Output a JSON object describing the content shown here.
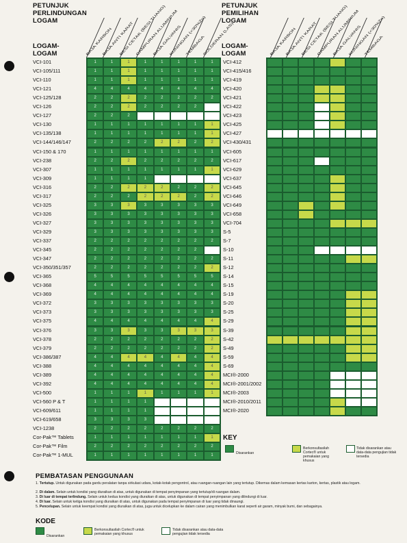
{
  "left_table": {
    "title": [
      "PETUNJUK",
      "PERLINDUNGAN",
      "LOGAM"
    ],
    "metals_header": [
      "LOGAM-",
      "LOGAM"
    ],
    "columns": [
      "BAJA KARBON",
      "BAJA ANTI KARAT",
      "BESI CETAK (BESI TUANG)",
      "CAMPURAN ALUMINIUM",
      "BAJA GALVANIS",
      "KUNINGAN (<30%Zn)",
      "TEMBAGA",
      "SOLDERAN (LAS)"
    ],
    "rows": [
      {
        "label": "VCI-101",
        "cells": [
          "g1",
          "g1",
          "y1",
          "g1",
          "g1",
          "g1",
          "g1",
          "g1"
        ]
      },
      {
        "label": "VCI-105/111",
        "cells": [
          "g1",
          "g1",
          "y1",
          "g1",
          "g1",
          "g1",
          "g1",
          "g1"
        ]
      },
      {
        "label": "VCI-110",
        "cells": [
          "g1",
          "g1",
          "y1",
          "g1",
          "g1",
          "g1",
          "g1",
          "g1"
        ]
      },
      {
        "label": "VCI-121",
        "cells": [
          "g4",
          "g4",
          "g4",
          "g4",
          "g4",
          "g4",
          "g4",
          "g4"
        ]
      },
      {
        "label": "VCI-125/128",
        "cells": [
          "g2",
          "g2",
          "y2",
          "g2",
          "g2",
          "g2",
          "g2",
          "g2"
        ]
      },
      {
        "label": "VCI-126",
        "cells": [
          "g2",
          "g2",
          "y2",
          "g2",
          "g2",
          "g2",
          "g2",
          "w"
        ]
      },
      {
        "label": "VCI-127",
        "cells": [
          "g2",
          "g2",
          "g2",
          "w",
          "w",
          "w",
          "w",
          "w"
        ]
      },
      {
        "label": "VCI-130",
        "cells": [
          "g1",
          "g1",
          "g1",
          "g1",
          "g1",
          "g1",
          "g1",
          "y1"
        ]
      },
      {
        "label": "VCI-135/138",
        "cells": [
          "g1",
          "g1",
          "g1",
          "g1",
          "g1",
          "g1",
          "g1",
          "y1"
        ]
      },
      {
        "label": "VCI-144/146/147",
        "cells": [
          "g2",
          "g2",
          "g2",
          "g2",
          "y2",
          "y2",
          "g2",
          "y2"
        ]
      },
      {
        "label": "VCI-150 & 170",
        "cells": [
          "g1",
          "g1",
          "g1",
          "g1",
          "g1",
          "g1",
          "g1",
          "g1"
        ]
      },
      {
        "label": "VCI-238",
        "cells": [
          "g2",
          "g2",
          "y2",
          "g2",
          "g2",
          "g2",
          "g2",
          "g2"
        ]
      },
      {
        "label": "VCI-307",
        "cells": [
          "g1",
          "g1",
          "g1",
          "g1",
          "g1",
          "g1",
          "g1",
          "y1"
        ]
      },
      {
        "label": "VCI-309",
        "cells": [
          "g1",
          "g1",
          "g1",
          "g1",
          "w",
          "w",
          "w",
          "w"
        ]
      },
      {
        "label": "VCI-316",
        "cells": [
          "g2",
          "g2",
          "y2",
          "y2",
          "y2",
          "g2",
          "g2",
          "y2"
        ]
      },
      {
        "label": "VCI-317",
        "cells": [
          "g2",
          "g2",
          "g2",
          "y2",
          "y2",
          "y2",
          "g2",
          "y2"
        ]
      },
      {
        "label": "VCI-325",
        "cells": [
          "g3",
          "g3",
          "y3",
          "g3",
          "g3",
          "g3",
          "g3",
          "g3"
        ]
      },
      {
        "label": "VCI-326",
        "cells": [
          "g3",
          "g3",
          "g3",
          "g3",
          "g3",
          "g3",
          "g3",
          "g3"
        ]
      },
      {
        "label": "VCI-327",
        "cells": [
          "g3",
          "g3",
          "g3",
          "g3",
          "g3",
          "g3",
          "g3",
          "g3"
        ]
      },
      {
        "label": "VCI-329",
        "cells": [
          "g3",
          "g3",
          "g3",
          "g3",
          "g3",
          "g3",
          "g3",
          "g3"
        ]
      },
      {
        "label": "VCI-337",
        "cells": [
          "g2",
          "g2",
          "g2",
          "g2",
          "g2",
          "g2",
          "g2",
          "g2"
        ]
      },
      {
        "label": "VCI-345",
        "cells": [
          "g2",
          "g2",
          "g2",
          "g2",
          "g2",
          "g2",
          "g2",
          "w"
        ]
      },
      {
        "label": "VCI-347",
        "cells": [
          "g2",
          "g2",
          "g2",
          "g2",
          "g2",
          "g2",
          "g2",
          "g2"
        ]
      },
      {
        "label": "VCI-350/351/357",
        "cells": [
          "g2",
          "g2",
          "g2",
          "g2",
          "g2",
          "g2",
          "g2",
          "y2"
        ]
      },
      {
        "label": "VCI-365",
        "cells": [
          "g5",
          "g5",
          "g5",
          "g5",
          "g5",
          "g5",
          "g5",
          "g5"
        ]
      },
      {
        "label": "VCI-368",
        "cells": [
          "g4",
          "g4",
          "g4",
          "g4",
          "g4",
          "g4",
          "g4",
          "g4"
        ]
      },
      {
        "label": "VCI-369",
        "cells": [
          "g4",
          "g4",
          "g4",
          "g4",
          "g4",
          "g4",
          "g4",
          "g4"
        ]
      },
      {
        "label": "VCI-372",
        "cells": [
          "g3",
          "g3",
          "g3",
          "g3",
          "g3",
          "g3",
          "g3",
          "g3"
        ]
      },
      {
        "label": "VCI-373",
        "cells": [
          "g3",
          "g3",
          "g3",
          "g3",
          "g3",
          "g3",
          "g3",
          "g3"
        ]
      },
      {
        "label": "VCI-375",
        "cells": [
          "g4",
          "g4",
          "g4",
          "g4",
          "g4",
          "g4",
          "g4",
          "y4"
        ]
      },
      {
        "label": "VCI-376",
        "cells": [
          "g3",
          "g3",
          "y3",
          "g3",
          "g3",
          "y3",
          "y3",
          "y3"
        ]
      },
      {
        "label": "VCI-378",
        "cells": [
          "g2",
          "g2",
          "g2",
          "g2",
          "g2",
          "g2",
          "g2",
          "y2"
        ]
      },
      {
        "label": "VCI-379",
        "cells": [
          "g2",
          "g2",
          "g2",
          "g2",
          "g2",
          "g2",
          "g2",
          "y2"
        ]
      },
      {
        "label": "VCI-386/387",
        "cells": [
          "g4",
          "g4",
          "y4",
          "y4",
          "g4",
          "y4",
          "g4",
          "y4"
        ]
      },
      {
        "label": "VCI-388",
        "cells": [
          "g4",
          "g4",
          "g4",
          "g4",
          "g4",
          "g4",
          "g4",
          "y4"
        ]
      },
      {
        "label": "VCI-389",
        "cells": [
          "g4",
          "g4",
          "g4",
          "g4",
          "g4",
          "g4",
          "g4",
          "y4"
        ]
      },
      {
        "label": "VCI-392",
        "cells": [
          "g4",
          "g4",
          "g4",
          "g4",
          "g4",
          "g4",
          "g4",
          "y4"
        ]
      },
      {
        "label": "VCI-500",
        "cells": [
          "g1",
          "g1",
          "g1",
          "y1",
          "g1",
          "g1",
          "g1",
          "y1"
        ]
      },
      {
        "label": "VCI-560 P & T",
        "cells": [
          "g1",
          "g1",
          "g1",
          "g1",
          "w",
          "w",
          "w",
          "w"
        ]
      },
      {
        "label": "VCI-609/611",
        "cells": [
          "g1",
          "g1",
          "g1",
          "g1",
          "w",
          "w",
          "w",
          "w"
        ]
      },
      {
        "label": "VCI-619/658",
        "cells": [
          "g3",
          "g3",
          "g3",
          "g3",
          "w",
          "w",
          "w",
          "w"
        ]
      },
      {
        "label": "VCI-1238",
        "cells": [
          "g2",
          "g2",
          "g2",
          "g2",
          "g2",
          "g2",
          "g2",
          "g2"
        ]
      },
      {
        "label": "Cor-Pak™ Tablets",
        "cells": [
          "g1",
          "g1",
          "g1",
          "g1",
          "g1",
          "g1",
          "g1",
          "y1"
        ]
      },
      {
        "label": "Cor-Pak™ Film",
        "cells": [
          "g2",
          "g2",
          "g2",
          "g2",
          "g2",
          "g2",
          "g2",
          "g2"
        ]
      },
      {
        "label": "Cor-Pak™ 1-MUL",
        "cells": [
          "g1",
          "g1",
          "g1",
          "g1",
          "g1",
          "g1",
          "g1",
          "g1"
        ]
      }
    ]
  },
  "right_table": {
    "title": [
      "PETUNJUK",
      "PEMILIHAN",
      "LOGAM"
    ],
    "metals_header": [
      "LOGAM-",
      "LOGAM"
    ],
    "columns": [
      "BAJA KARBON",
      "BAJA ANTI KARAT",
      "BESI CETAK (BESI TUANG)",
      "CAMPURAN ALUMINIUM",
      "BAJA GALVANIS",
      "KUNINGAN (<30%Zn)",
      "TEMBAGA"
    ],
    "rows": [
      {
        "label": "VCI-412",
        "cells": [
          "g",
          "g",
          "g",
          "g",
          "y",
          "g",
          "g"
        ]
      },
      {
        "label": "VCI-415/416",
        "cells": [
          "g",
          "g",
          "g",
          "g",
          "g",
          "g",
          "g"
        ]
      },
      {
        "label": "VCI-419",
        "cells": [
          "g",
          "g",
          "g",
          "g",
          "g",
          "g",
          "g"
        ]
      },
      {
        "label": "VCI-420",
        "cells": [
          "g",
          "g",
          "g",
          "y",
          "y",
          "g",
          "g"
        ]
      },
      {
        "label": "VCI-421",
        "cells": [
          "g",
          "g",
          "g",
          "y",
          "y",
          "g",
          "g"
        ]
      },
      {
        "label": "VCI-422",
        "cells": [
          "g",
          "g",
          "g",
          "w",
          "y",
          "g",
          "g"
        ]
      },
      {
        "label": "VCI-423",
        "cells": [
          "g",
          "g",
          "g",
          "w",
          "y",
          "g",
          "g"
        ]
      },
      {
        "label": "VCI-425",
        "cells": [
          "g",
          "g",
          "g",
          "w",
          "y",
          "g",
          "g"
        ]
      },
      {
        "label": "VCI-427",
        "cells": [
          "w",
          "w",
          "w",
          "w",
          "w",
          "w",
          "w"
        ]
      },
      {
        "label": "VCI-430/431",
        "cells": [
          "g",
          "g",
          "g",
          "g",
          "g",
          "g",
          "g"
        ]
      },
      {
        "label": "VCI-605",
        "cells": [
          "g",
          "g",
          "g",
          "g",
          "g",
          "g",
          "g"
        ]
      },
      {
        "label": "VCI-617",
        "cells": [
          "g",
          "g",
          "g",
          "w",
          "g",
          "g",
          "g"
        ]
      },
      {
        "label": "VCI-629",
        "cells": [
          "g",
          "g",
          "g",
          "g",
          "g",
          "g",
          "g"
        ]
      },
      {
        "label": "VCI-637",
        "cells": [
          "g",
          "g",
          "g",
          "g",
          "y",
          "g",
          "g"
        ]
      },
      {
        "label": "VCI-645",
        "cells": [
          "g",
          "g",
          "g",
          "g",
          "y",
          "g",
          "g"
        ]
      },
      {
        "label": "VCI-646",
        "cells": [
          "g",
          "g",
          "g",
          "g",
          "y",
          "g",
          "g"
        ]
      },
      {
        "label": "VCI-649",
        "cells": [
          "g",
          "g",
          "y",
          "g",
          "y",
          "g",
          "g"
        ]
      },
      {
        "label": "VCI-658",
        "cells": [
          "g",
          "g",
          "y",
          "g",
          "g",
          "g",
          "g"
        ]
      },
      {
        "label": "VCI-704",
        "cells": [
          "g",
          "g",
          "g",
          "g",
          "y",
          "y",
          "y"
        ]
      },
      {
        "label": "S-5",
        "cells": [
          "g",
          "g",
          "g",
          "g",
          "g",
          "g",
          "g"
        ]
      },
      {
        "label": "S-7",
        "cells": [
          "g",
          "g",
          "g",
          "g",
          "g",
          "g",
          "g"
        ]
      },
      {
        "label": "S-10",
        "cells": [
          "g",
          "g",
          "g",
          "w",
          "w",
          "w",
          "w"
        ]
      },
      {
        "label": "S-11",
        "cells": [
          "g",
          "g",
          "g",
          "g",
          "g",
          "y",
          "y"
        ]
      },
      {
        "label": "S-12",
        "cells": [
          "g",
          "g",
          "g",
          "g",
          "g",
          "g",
          "g"
        ]
      },
      {
        "label": "S-14",
        "cells": [
          "g",
          "g",
          "g",
          "g",
          "g",
          "g",
          "g"
        ]
      },
      {
        "label": "S-15",
        "cells": [
          "g",
          "g",
          "g",
          "g",
          "g",
          "g",
          "g"
        ]
      },
      {
        "label": "S-19",
        "cells": [
          "g",
          "g",
          "g",
          "g",
          "g",
          "y",
          "y"
        ]
      },
      {
        "label": "S-20",
        "cells": [
          "g",
          "g",
          "g",
          "g",
          "g",
          "y",
          "y"
        ]
      },
      {
        "label": "S-25",
        "cells": [
          "g",
          "g",
          "g",
          "g",
          "g",
          "y",
          "y"
        ]
      },
      {
        "label": "S-29",
        "cells": [
          "g",
          "g",
          "g",
          "g",
          "g",
          "y",
          "y"
        ]
      },
      {
        "label": "S-39",
        "cells": [
          "g",
          "g",
          "g",
          "g",
          "g",
          "y",
          "y"
        ]
      },
      {
        "label": "S-42",
        "cells": [
          "y",
          "y",
          "y",
          "y",
          "y",
          "y",
          "y"
        ]
      },
      {
        "label": "S-49",
        "cells": [
          "g",
          "g",
          "g",
          "g",
          "g",
          "y",
          "y"
        ]
      },
      {
        "label": "S-59",
        "cells": [
          "g",
          "g",
          "g",
          "g",
          "g",
          "y",
          "y"
        ]
      },
      {
        "label": "S-69",
        "cells": [
          "g",
          "g",
          "g",
          "g",
          "g",
          "g",
          "g"
        ]
      },
      {
        "label": "MCI®-2000",
        "cells": [
          "g",
          "g",
          "g",
          "g",
          "w",
          "w",
          "w"
        ]
      },
      {
        "label": "MCI®-2001/2002",
        "cells": [
          "g",
          "g",
          "g",
          "g",
          "w",
          "w",
          "w"
        ]
      },
      {
        "label": "MCI®-2003",
        "cells": [
          "g",
          "g",
          "g",
          "g",
          "w",
          "w",
          "w"
        ]
      },
      {
        "label": "MCI®-2010/2011",
        "cells": [
          "g",
          "g",
          "g",
          "g",
          "y",
          "w",
          "w"
        ]
      },
      {
        "label": "MCI®-2020",
        "cells": [
          "g",
          "g",
          "g",
          "g",
          "y",
          "g",
          "g"
        ]
      }
    ]
  },
  "key": {
    "title": "KEY",
    "items": [
      {
        "color": "g",
        "text": "Disarankan"
      },
      {
        "color": "y",
        "text": "Berkonsultasilah Cortec® untuk pemakaian yang khusus"
      },
      {
        "color": "w",
        "text": "Tidak disarankan atau data-data pengujian tidak tersedia"
      }
    ]
  },
  "restrictions": {
    "title": "PEMBATASAN PENGGUNAAN",
    "items": [
      {
        "num": "1.",
        "bold": "Tertutup.",
        "text": " Untuk digunakan pada gardu peralatan tanpa sirkulasi udara, kotak-kotak pengontrol, atau ruangan-ruangan lain yang tertutup. Dikemas dalam kemasan kertas karton, kertas, plastik atau logam."
      },
      {
        "num": "2.",
        "bold": "Di dalam.",
        "text": " Selain untuk kondisi yang diuraikan di atas, untuk digunakan di tempat penyimpanan yang tertutup/di ruangan dalam."
      },
      {
        "num": "3.",
        "bold": "Di luar di tempat terlindung.",
        "text": " Selain untuk kedua kondisi yang diuraikan di atas, untuk digunakan di tempat penyimpanan yang dilindungi di luar."
      },
      {
        "num": "4.",
        "bold": "Di luar.",
        "text": " Selain untuk ketiga kondisi yang diuraikan di atas, untuk digunakan pada tempat penyimpanan di luar yang tidak dinaungi."
      },
      {
        "num": "5.",
        "bold": "Pencelupan.",
        "text": " Selain untuk keempat kondisi yang diuraikan di atas, juga untuk dicelupkan ke dalam cairan yang menimbulkan karat seperti air garam, minyak bumi, dan sebagainya."
      }
    ]
  },
  "kode": {
    "title": "KODE",
    "items": [
      {
        "color": "g",
        "text": "Disarankan"
      },
      {
        "color": "y",
        "text": "Berkonsultasilah Cortec® untuk pemakaian yang khusus"
      },
      {
        "color": "w",
        "text": "Tidak disarankan atau data-data pengujian tidak tersedia"
      }
    ]
  },
  "colors": {
    "green": "#2e8b45",
    "yellow": "#c7d94a",
    "white": "#ffffff",
    "border": "#1a5c2e"
  }
}
